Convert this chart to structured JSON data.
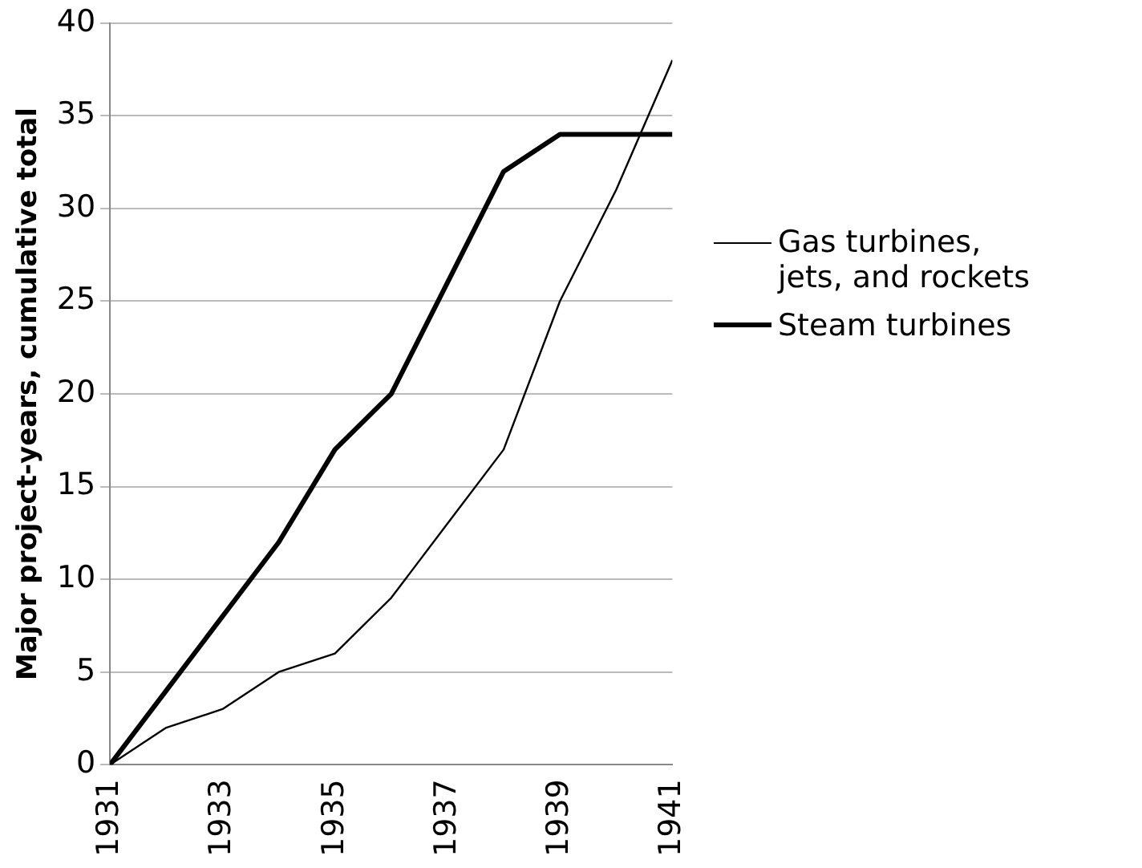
{
  "chart_data": {
    "type": "line",
    "ylabel": "Major project-years, cumulative total",
    "x": [
      1931,
      1932,
      1933,
      1934,
      1935,
      1936,
      1937,
      1938,
      1939,
      1940,
      1941
    ],
    "series": [
      {
        "name": "Gas turbines, jets, and rockets",
        "color": "#000000",
        "values": [
          0,
          2,
          3,
          5,
          6,
          9,
          13,
          17,
          25,
          31,
          38
        ]
      },
      {
        "name": "Steam turbines",
        "color": "#000000",
        "values": [
          0,
          4,
          8,
          12,
          17,
          20,
          26,
          32,
          34,
          34,
          34
        ]
      }
    ],
    "xlim": [
      1931,
      1941
    ],
    "xticks": [
      1931,
      1933,
      1935,
      1937,
      1939,
      1941
    ],
    "ylim": [
      0,
      40
    ],
    "yticks": [
      0,
      5,
      10,
      15,
      20,
      25,
      30,
      35,
      40
    ],
    "grid": "y",
    "legend": "right",
    "marker": "none",
    "line_style": "solid"
  }
}
